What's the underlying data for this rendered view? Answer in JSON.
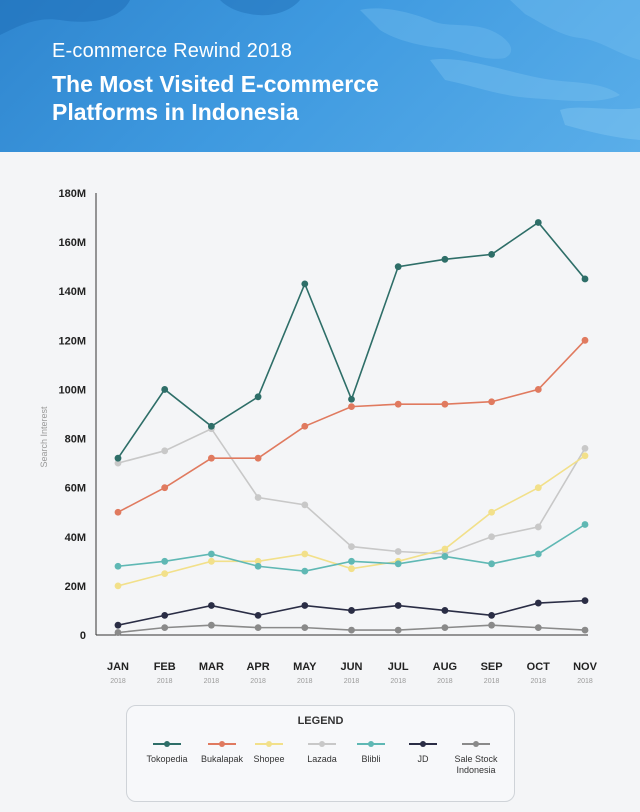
{
  "header": {
    "subtitle": "E-commerce Rewind 2018",
    "title": "The Most Visited E-commerce Platforms in Indonesia"
  },
  "legend": {
    "title": "LEGEND"
  },
  "chart_data": {
    "type": "line",
    "ylabel": "Search Interest",
    "ylim": [
      0,
      180
    ],
    "y_unit": "M",
    "y_ticks": [
      "0",
      "20M",
      "40M",
      "60M",
      "80M",
      "100M",
      "120M",
      "140M",
      "160M",
      "180M"
    ],
    "categories": [
      "JAN",
      "FEB",
      "MAR",
      "APR",
      "MAY",
      "JUN",
      "JUL",
      "AUG",
      "SEP",
      "OCT",
      "NOV"
    ],
    "category_sublabels": [
      "2018",
      "2018",
      "2018",
      "2018",
      "2018",
      "2018",
      "2018",
      "2018",
      "2018",
      "2018",
      "2018"
    ],
    "grid": false,
    "legend_position": "bottom",
    "series": [
      {
        "name": "Tokopedia",
        "color": "#2e6e68",
        "values": [
          72,
          100,
          85,
          97,
          143,
          96,
          150,
          153,
          155,
          168,
          145
        ]
      },
      {
        "name": "Bukalapak",
        "color": "#e07a5f",
        "values": [
          50,
          60,
          72,
          72,
          85,
          93,
          94,
          94,
          95,
          100,
          120
        ]
      },
      {
        "name": "Shopee",
        "color": "#f2e08a",
        "values": [
          20,
          25,
          30,
          30,
          33,
          27,
          30,
          35,
          50,
          60,
          73
        ]
      },
      {
        "name": "Lazada",
        "color": "#c8c8c8",
        "values": [
          70,
          75,
          84,
          56,
          53,
          36,
          34,
          33,
          40,
          44,
          76
        ]
      },
      {
        "name": "Blibli",
        "color": "#5fb8b4",
        "values": [
          28,
          30,
          33,
          28,
          26,
          30,
          29,
          32,
          29,
          33,
          45
        ]
      },
      {
        "name": "JD",
        "color": "#2a2d45",
        "values": [
          4,
          8,
          12,
          8,
          12,
          10,
          12,
          10,
          8,
          13,
          14
        ]
      },
      {
        "name": "Sale Stock Indonesia",
        "color": "#8a8a8a",
        "values": [
          1,
          3,
          4,
          3,
          3,
          2,
          2,
          3,
          4,
          3,
          2
        ]
      }
    ]
  }
}
